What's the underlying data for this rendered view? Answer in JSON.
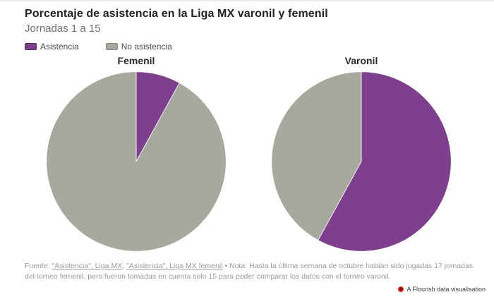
{
  "header": {
    "title": "Porcentaje de asistencia en la Liga MX varonil y femenil",
    "subtitle": "Jornadas 1 a 15"
  },
  "legend": {
    "items": [
      {
        "label": "Asistencia",
        "color": "#7d3f8e",
        "border": "#5c2e69"
      },
      {
        "label": "No asistencia",
        "color": "#a6a99b",
        "border": "#83867a"
      }
    ]
  },
  "chart_data": [
    {
      "type": "pie",
      "title": "Femenil",
      "categories": [
        "Asistencia",
        "No asistencia"
      ],
      "values": [
        8,
        92
      ],
      "colors": [
        "#7d3f8e",
        "#a6a99b"
      ],
      "start_angle_deg": -90,
      "direction": "clockwise",
      "labels_shown": false
    },
    {
      "type": "pie",
      "title": "Varonil",
      "categories": [
        "Asistencia",
        "No asistencia"
      ],
      "values": [
        58,
        42
      ],
      "colors": [
        "#7d3f8e",
        "#a6a99b"
      ],
      "start_angle_deg": -90,
      "direction": "clockwise",
      "labels_shown": false
    }
  ],
  "footer": {
    "source_prefix": "Fuente: ",
    "link1": "\"Asistencia\", Liga MX",
    "separator": ", ",
    "link2": "\"Asistencia\", Liga MX femenil",
    "note": " • Nota: Hasta la última semana de octubre habían sido jugadas 17 jornadas del torneo femenil, pero fueron tomadas en cuenta solo 15 para poder comparar los datos con el torneo varonil."
  },
  "attribution": {
    "label": "A Flourish data visualisation",
    "logo_color": "#dd1f1f"
  }
}
